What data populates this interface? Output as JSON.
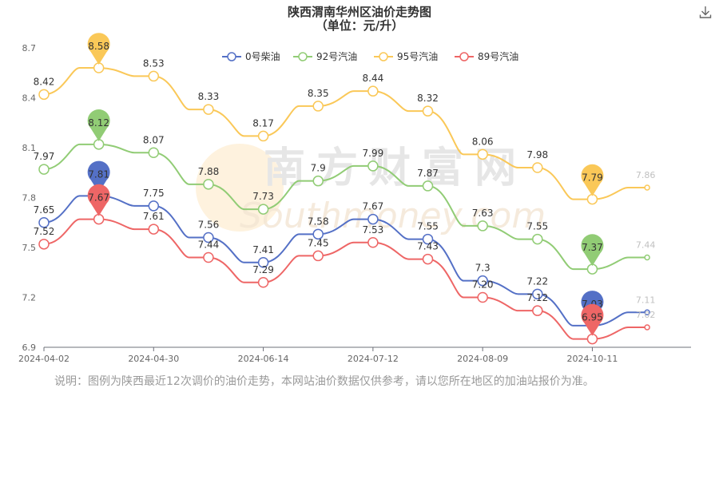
{
  "title": "陕西渭南华州区油价走势图",
  "subtitle": "（单位：元/升）",
  "note": "说明：图例为陕西最近12次调价的油价走势，本网站油价数据仅供参考，请以您所在地区的加油站报价为准。",
  "watermark_text": "南方财富网",
  "watermark_sub": "Southmoney.com",
  "chart_data": {
    "type": "line",
    "x_tick_labels": [
      "2024-04-02",
      "2024-04-30",
      "2024-06-14",
      "2024-07-12",
      "2024-08-09",
      "2024-10-11"
    ],
    "ylim": [
      6.9,
      8.7
    ],
    "y_ticks": [
      6.9,
      7.2,
      7.5,
      7.8,
      8.1,
      8.4,
      8.7
    ],
    "y_tick_labels": [
      "6.9",
      "7.2",
      "7.5",
      "7.8",
      "8.1",
      "8.4",
      "8.7"
    ],
    "legend_position": "top",
    "series": [
      {
        "name": "0号柴油",
        "color": "#5470c6",
        "values": [
          7.65,
          7.81,
          7.75,
          7.56,
          7.41,
          7.58,
          7.67,
          7.55,
          7.3,
          7.22,
          7.03,
          7.11
        ],
        "labels": [
          "7.65",
          "7.81",
          "7.75",
          "7.56",
          "7.41",
          "7.58",
          "7.67",
          "7.55",
          "7.3",
          "7.22",
          "7.03",
          "7.11"
        ]
      },
      {
        "name": "92号汽油",
        "color": "#91cc75",
        "values": [
          7.97,
          8.12,
          8.07,
          7.88,
          7.73,
          7.9,
          7.99,
          7.87,
          7.63,
          7.55,
          7.37,
          7.44
        ],
        "labels": [
          "7.97",
          "8.12",
          "8.07",
          "7.88",
          "7.73",
          "7.9",
          "7.99",
          "7.87",
          "7.63",
          "7.55",
          "7.37",
          "7.44"
        ]
      },
      {
        "name": "95号汽油",
        "color": "#fac858",
        "values": [
          8.42,
          8.58,
          8.53,
          8.33,
          8.17,
          8.35,
          8.44,
          8.32,
          8.06,
          7.98,
          7.79,
          7.86
        ],
        "labels": [
          "8.42",
          "8.58",
          "8.53",
          "8.33",
          "8.17",
          "8.35",
          "8.44",
          "8.32",
          "8.06",
          "7.98",
          "7.79",
          "7.86"
        ]
      },
      {
        "name": "89号汽油",
        "color": "#ee6666",
        "values": [
          7.52,
          7.67,
          7.61,
          7.44,
          7.29,
          7.45,
          7.53,
          7.43,
          7.2,
          7.12,
          6.95,
          7.02
        ],
        "labels": [
          "7.52",
          "7.67",
          "7.61",
          "7.44",
          "7.29",
          "7.45",
          "7.53",
          "7.43",
          "7.20",
          "7.12",
          "6.95",
          "7.02"
        ]
      }
    ]
  }
}
